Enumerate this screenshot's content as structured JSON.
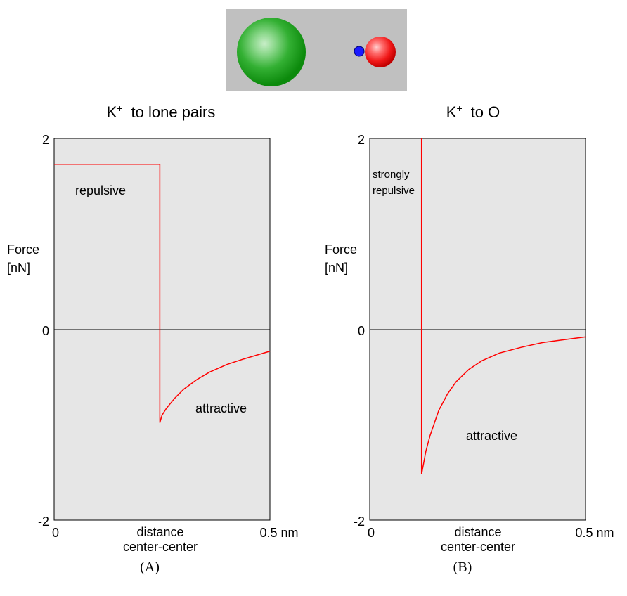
{
  "colors": {
    "plot_bg": "#e6e6e6",
    "curve": "#ff0000",
    "axis": "#000000",
    "scene_bg": "#c0c0c0",
    "k_ion": "#11a011",
    "lone_pair": "#1a1aff",
    "oxygen": "#ff1a1a"
  },
  "scene": {
    "icons": [
      "k-ion-sphere-icon",
      "lone-pair-dot-icon",
      "oxygen-sphere-icon"
    ]
  },
  "chart_data": [
    {
      "type": "line",
      "panel_label": "(A)",
      "title_main": "K",
      "title_sup": "+",
      "title_rest": "to  lone pairs",
      "ylabel_line1": "Force",
      "ylabel_line2": "[nN]",
      "xlabel_line1": "distance",
      "xlabel_line2": "center-center",
      "xlim": [
        0,
        0.5
      ],
      "ylim": [
        -2,
        2
      ],
      "x_tick_labels": [
        "0",
        "0.5 nm"
      ],
      "y_tick_labels": [
        "2",
        "0",
        "-2"
      ],
      "annotations": [
        "repulsive",
        "attractive"
      ],
      "x": [
        0,
        0.245,
        0.245,
        0.25,
        0.26,
        0.28,
        0.3,
        0.33,
        0.36,
        0.4,
        0.44,
        0.5
      ],
      "y": [
        1.73,
        1.73,
        -0.98,
        -0.9,
        -0.83,
        -0.72,
        -0.63,
        -0.53,
        -0.45,
        -0.37,
        -0.31,
        -0.23
      ]
    },
    {
      "type": "line",
      "panel_label": "(B)",
      "title_main": "K",
      "title_sup": "+",
      "title_rest": "to   O",
      "ylabel_line1": "Force",
      "ylabel_line2": "[nN]",
      "xlabel_line1": "distance",
      "xlabel_line2": "center-center",
      "xlim": [
        0,
        0.5
      ],
      "ylim": [
        -2,
        2
      ],
      "x_tick_labels": [
        "0",
        "0.5 nm"
      ],
      "y_tick_labels": [
        "2",
        "0",
        "-2"
      ],
      "annotations": [
        "strongly",
        "repulsive",
        "attractive"
      ],
      "x": [
        0.12,
        0.12,
        0.125,
        0.13,
        0.14,
        0.16,
        0.18,
        0.2,
        0.23,
        0.26,
        0.3,
        0.35,
        0.4,
        0.45,
        0.5
      ],
      "y": [
        2,
        -1.52,
        -1.4,
        -1.28,
        -1.11,
        -0.85,
        -0.68,
        -0.55,
        -0.42,
        -0.33,
        -0.25,
        -0.19,
        -0.14,
        -0.11,
        -0.08
      ]
    }
  ]
}
